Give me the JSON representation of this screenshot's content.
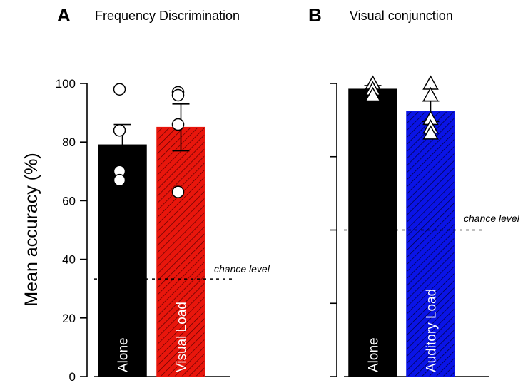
{
  "ylabel": "Mean accuracy (%)",
  "chance_label": "chance level",
  "chart_data": [
    {
      "type": "bar",
      "panel_letter": "A",
      "title": "Frequency Discrimination",
      "categories": [
        "Alone",
        "Visual Load"
      ],
      "values": [
        79,
        85
      ],
      "errors": [
        7,
        8
      ],
      "bar_colors": [
        "#000000",
        "#e8160c"
      ],
      "hatched": [
        false,
        true
      ],
      "points": [
        [
          98,
          84,
          70,
          67
        ],
        [
          97,
          96,
          86,
          63
        ]
      ],
      "point_marker": "circle",
      "chance_level": 33.3,
      "ylim": [
        0,
        100
      ],
      "yticks": [
        0,
        20,
        40,
        60,
        80,
        100
      ],
      "ytick_labels": [
        "0",
        "20",
        "40",
        "60",
        "80",
        "100"
      ]
    },
    {
      "type": "bar",
      "panel_letter": "B",
      "title": "Visual conjunction",
      "categories": [
        "Alone",
        "Auditory Load"
      ],
      "values": [
        98,
        90.5
      ],
      "errors": [
        1.3,
        3.5
      ],
      "bar_colors": [
        "#000000",
        "#0a14e6"
      ],
      "hatched": [
        false,
        true
      ],
      "points": [
        [
          100,
          98,
          96
        ],
        [
          100,
          96,
          88,
          85,
          83
        ]
      ],
      "point_marker": "triangle",
      "chance_level": 50,
      "ylim": [
        0,
        100
      ],
      "yticks": [
        0,
        25,
        50,
        75,
        100
      ],
      "ytick_labels": []
    }
  ]
}
